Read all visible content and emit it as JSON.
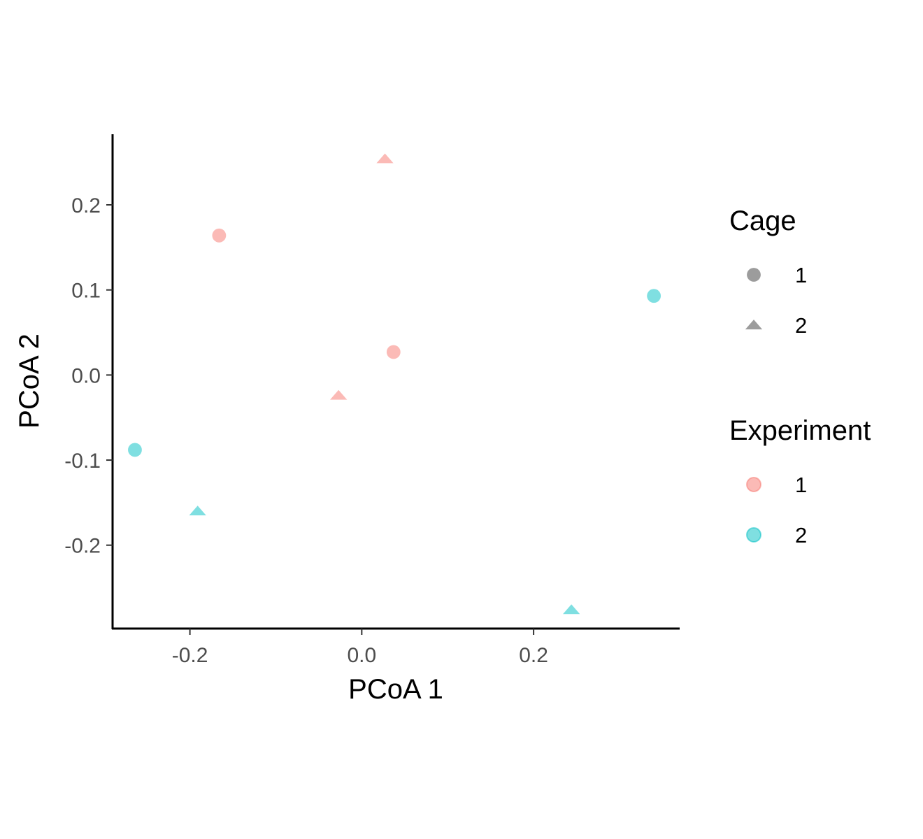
{
  "chart_data": {
    "type": "scatter",
    "xlabel": "PCoA 1",
    "ylabel": "PCoA 2",
    "xlim": [
      -0.29,
      0.37
    ],
    "ylim": [
      -0.298,
      0.283
    ],
    "x_ticks": [
      -0.2,
      0.0,
      0.2
    ],
    "x_tick_labels": [
      "-0.2",
      "0.0",
      "0.2"
    ],
    "y_ticks": [
      -0.2,
      -0.1,
      0.0,
      0.1,
      0.2
    ],
    "y_tick_labels": [
      "-0.2",
      "-0.1",
      "0.0",
      "0.1",
      "0.2"
    ],
    "grid": false,
    "legend_position": "right",
    "points": [
      {
        "x": -0.166,
        "y": 0.164,
        "cage": "1",
        "experiment": "1"
      },
      {
        "x": 0.027,
        "y": 0.254,
        "cage": "2",
        "experiment": "1"
      },
      {
        "x": 0.037,
        "y": 0.027,
        "cage": "1",
        "experiment": "1"
      },
      {
        "x": -0.027,
        "y": -0.024,
        "cage": "2",
        "experiment": "1"
      },
      {
        "x": 0.34,
        "y": 0.093,
        "cage": "1",
        "experiment": "2"
      },
      {
        "x": -0.264,
        "y": -0.088,
        "cage": "1",
        "experiment": "2"
      },
      {
        "x": -0.191,
        "y": -0.16,
        "cage": "2",
        "experiment": "2"
      },
      {
        "x": 0.244,
        "y": -0.276,
        "cage": "2",
        "experiment": "2"
      }
    ],
    "legends": [
      {
        "title": "Cage",
        "kind": "shape",
        "entries": [
          {
            "label": "1",
            "shape": "circle"
          },
          {
            "label": "2",
            "shape": "triangle"
          }
        ]
      },
      {
        "title": "Experiment",
        "kind": "color",
        "entries": [
          {
            "label": "1",
            "color": "#F8766D"
          },
          {
            "label": "2",
            "color": "#00BFC4"
          }
        ]
      }
    ],
    "colors": {
      "1": "#F8766D",
      "2": "#00BFC4"
    },
    "shapes": {
      "1": "circle",
      "2": "triangle"
    },
    "point_alpha": 0.5
  }
}
